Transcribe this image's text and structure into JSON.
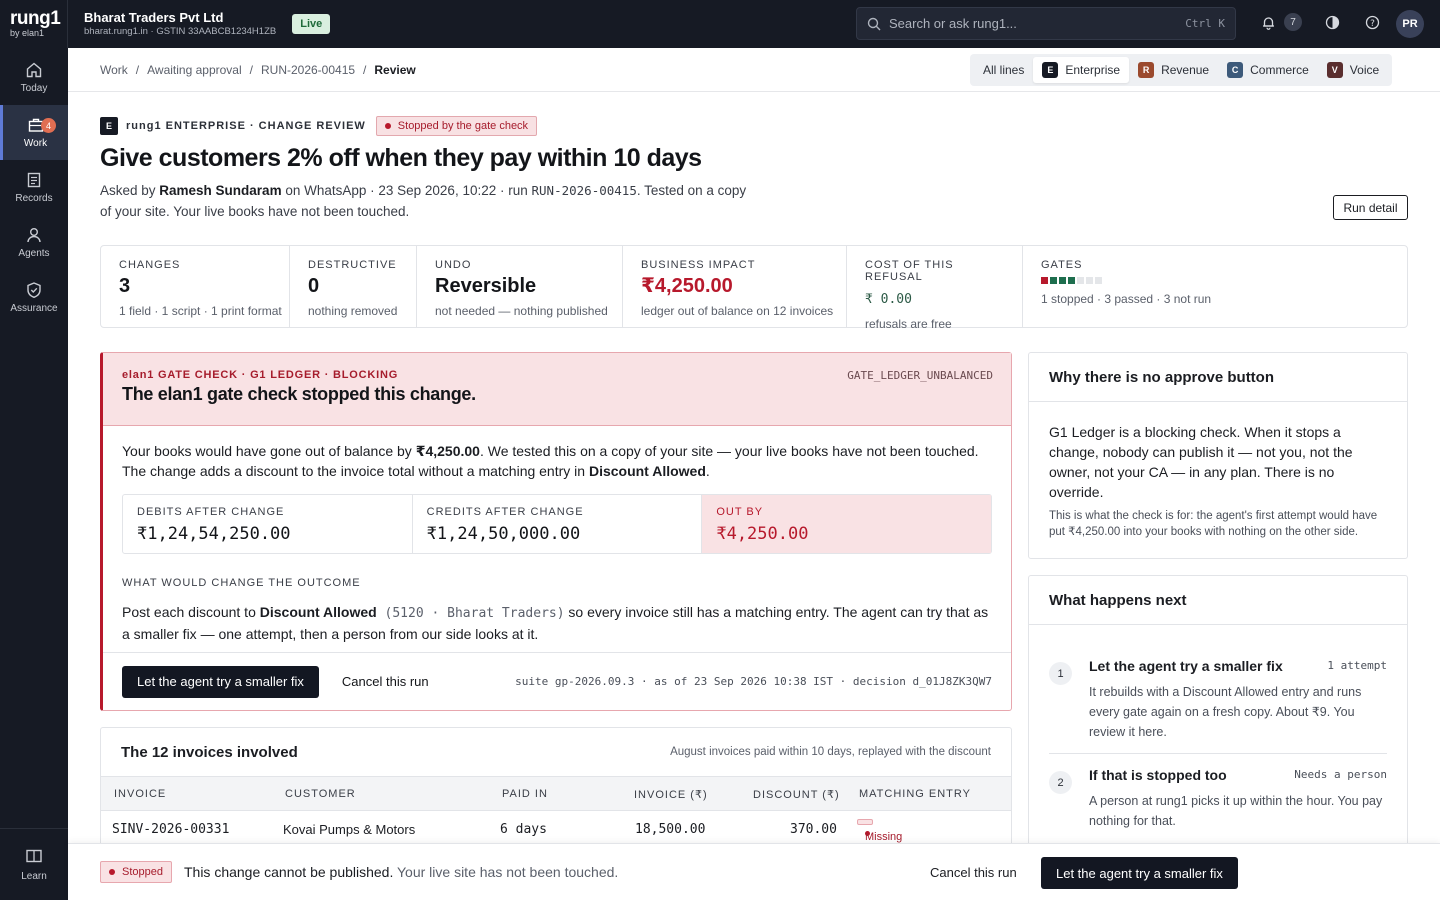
{
  "brand": {
    "logo": "rung1",
    "by": "by elan1"
  },
  "org": {
    "name": "Bharat Traders Pvt Ltd",
    "sub": "bharat.rung1.in · GSTIN 33AABCB1234H1ZB",
    "status": "Live"
  },
  "search": {
    "placeholder": "Search or ask rung1...",
    "shortcut": "Ctrl K"
  },
  "top": {
    "notif_count": "7",
    "avatar": "PR"
  },
  "rail": {
    "items": [
      {
        "label": "Today",
        "icon": "home-icon"
      },
      {
        "label": "Work",
        "icon": "briefcase-icon",
        "badge": "4"
      },
      {
        "label": "Records",
        "icon": "document-icon"
      },
      {
        "label": "Agents",
        "icon": "person-icon"
      },
      {
        "label": "Assurance",
        "icon": "shield-check-icon"
      }
    ],
    "learn": "Learn"
  },
  "breadcrumb": {
    "items": [
      "Work",
      "Awaiting approval",
      "RUN-2026-00415",
      "Review"
    ],
    "sep": "/"
  },
  "lines": [
    {
      "label": "All lines"
    },
    {
      "label": "Enterprise",
      "mark": "E",
      "color": "#161a24"
    },
    {
      "label": "Revenue",
      "mark": "R",
      "color": "#9b4a2e"
    },
    {
      "label": "Commerce",
      "mark": "C",
      "color": "#3d5a7a"
    },
    {
      "label": "Voice",
      "mark": "V",
      "color": "#5a2e2e"
    }
  ],
  "header": {
    "mark": "E",
    "eyebrow": "rung1 ENTERPRISE · CHANGE REVIEW",
    "status": "Stopped by the gate check",
    "title": "Give customers 2% off when they pay within 10 days",
    "asked_prefix": "Asked by ",
    "asked_by": "Ramesh Sundaram",
    "asked_mid": " on WhatsApp · 23 Sep 2026, 10:22 · run ",
    "run_id": "RUN-2026-00415",
    "asked_suffix": ". Tested on a copy of your site. Your live books have not been touched.",
    "run_detail": "Run detail"
  },
  "stats": [
    {
      "key": "CHANGES",
      "value": "3",
      "sub": "1 field · 1 script · 1 print format"
    },
    {
      "key": "DESTRUCTIVE",
      "value": "0",
      "sub": "nothing removed"
    },
    {
      "key": "UNDO",
      "value": "Reversible",
      "sub": "not needed — nothing published"
    },
    {
      "key": "BUSINESS IMPACT",
      "value": "₹4,250.00",
      "sub": "ledger out of balance on 12 invoices"
    },
    {
      "key": "COST OF THIS REFUSAL",
      "value": "₹ 0.00",
      "sub": "refusals are free"
    },
    {
      "key": "GATES",
      "sub": "1 stopped · 3 passed · 3 not run",
      "gates": {
        "stopped": 1,
        "passed": 3,
        "not_run": 3
      }
    }
  ],
  "gate": {
    "eyebrow": "elan1 GATE CHECK · G1 LEDGER · BLOCKING",
    "code": "GATE_LEDGER_UNBALANCED",
    "title": "The elan1 gate check stopped this change.",
    "body_1": "Your books would have gone out of balance by ",
    "body_amount": "₹4,250.00",
    "body_2": ". We tested this on a copy of your site — your live books have not been touched. The change adds a discount to the invoice total without a matching entry in ",
    "body_account": "Discount Allowed",
    "body_3": ".",
    "balance": [
      {
        "key": "DEBITS AFTER CHANGE",
        "value": "₹1,24,54,250.00"
      },
      {
        "key": "CREDITS AFTER CHANGE",
        "value": "₹1,24,50,000.00"
      },
      {
        "key": "OUT BY",
        "value": "₹4,250.00"
      }
    ],
    "outcome_label": "WHAT WOULD CHANGE THE OUTCOME",
    "outcome_1": "Post each discount to ",
    "outcome_account": "Discount Allowed",
    "outcome_code": " (5120 · Bharat Traders)",
    "outcome_2": " so every invoice still has a matching entry. The agent can try that as a smaller fix — one attempt, then a person from our side looks at it.",
    "primary": "Let the agent try a smaller fix",
    "cancel": "Cancel this run",
    "suite": "suite gp-2026.09.3 · as of 23 Sep 2026 10:38 IST · decision d_01J8ZK3QW7"
  },
  "invoices": {
    "title": "The 12 invoices involved",
    "desc": "August invoices paid within 10 days, replayed with the discount",
    "columns": [
      "INVOICE",
      "CUSTOMER",
      "PAID IN",
      "INVOICE (₹)",
      "DISCOUNT (₹)",
      "MATCHING ENTRY"
    ],
    "rows": [
      {
        "invoice": "SINV-2026-00331",
        "customer": "Kovai Pumps & Motors",
        "paid_in": "6 days",
        "amount": "18,500.00",
        "discount": "370.00",
        "match": "Missing"
      }
    ]
  },
  "why": {
    "title": "Why there is no approve button",
    "body": "G1 Ledger is a blocking check. When it stops a change, nobody can publish it — not you, not the owner, not your CA — in any plan. There is no override.",
    "note": "This is what the check is for: the agent's first attempt would have put ₹4,250.00 into your books with nothing on the other side."
  },
  "next": {
    "title": "What happens next",
    "steps": [
      {
        "num": "1",
        "title": "Let the agent try a smaller fix",
        "tag": "1 attempt",
        "desc": "It rebuilds with a Discount Allowed entry and runs every gate again on a fresh copy. About ₹9. You review it here."
      },
      {
        "num": "2",
        "title": "If that is stopped too",
        "tag": "Needs a person",
        "desc": "A person at rung1 picks it up within the hour. You pay nothing for that."
      }
    ]
  },
  "bottom": {
    "pill": "Stopped",
    "text_strong": "This change cannot be published.",
    "text_muted": " Your live site has not been touched.",
    "cancel": "Cancel this run",
    "primary": "Let the agent try a smaller fix"
  },
  "colors": {
    "red": "#b7192c",
    "gate_passed": "#1e6e4e",
    "gate_not_run": "#e4e6e9"
  }
}
